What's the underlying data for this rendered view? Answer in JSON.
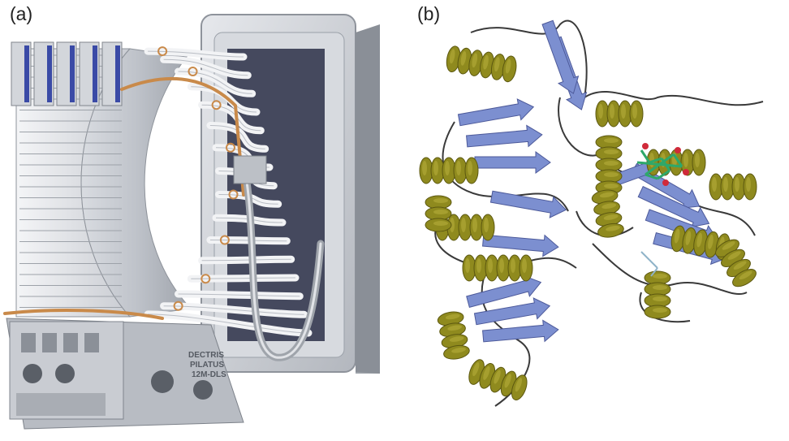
{
  "figure": {
    "panels": [
      {
        "label": "(a)",
        "subject": "detector-photo",
        "colors": {
          "metal": "#c8ccd2",
          "cable": "#f2f3f5",
          "copper": "#c98a4a",
          "module_blue": "#3a4aa6"
        },
        "badge_lines": [
          "DECTRIS",
          "PILATUS",
          "12M-DLS"
        ]
      },
      {
        "label": "(b)",
        "subject": "protein-ribbon",
        "colors": {
          "helix": "#8f8a1e",
          "strand": "#7c8fd0",
          "coil": "#3a3a3a",
          "ligand": "#2ea86a",
          "oxygen": "#d02a3a"
        }
      }
    ]
  }
}
